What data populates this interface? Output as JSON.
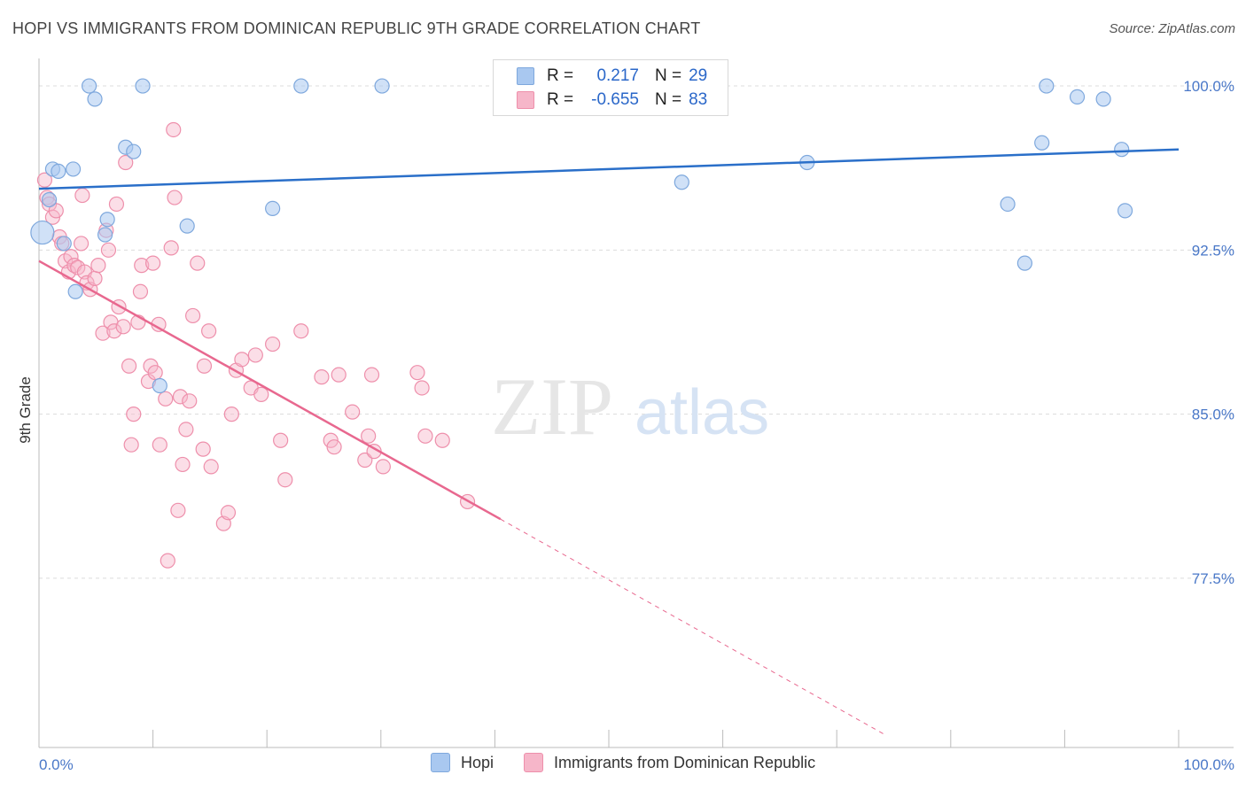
{
  "title": "HOPI VS IMMIGRANTS FROM DOMINICAN REPUBLIC 9TH GRADE CORRELATION CHART",
  "source": "Source: ZipAtlas.com",
  "watermark": {
    "zip": "ZIP",
    "atlas": "atlas"
  },
  "legend": {
    "hopi": {
      "r_label": "R =",
      "r_value": "0.217",
      "n_label": "N =",
      "n_value": "29"
    },
    "dominican": {
      "r_label": "R =",
      "r_value": "-0.655",
      "n_label": "N =",
      "n_value": "83"
    }
  },
  "bottom_legend": {
    "hopi": "Hopi",
    "dominican": "Immigrants from Dominican Republic"
  },
  "colors": {
    "hopi_fill": "#a9c8f0",
    "hopi_stroke": "#7ea8dd",
    "hopi_line": "#2a6fc9",
    "dom_fill": "#f6b6c9",
    "dom_stroke": "#ee8fab",
    "dom_line": "#e8688f",
    "grid": "#dcdcdc",
    "tick_text": "#4a78c8"
  },
  "chart_data": {
    "type": "scatter",
    "title": "HOPI VS IMMIGRANTS FROM DOMINICAN REPUBLIC 9TH GRADE CORRELATION CHART",
    "xlabel": "",
    "ylabel": "9th Grade",
    "xlim": [
      0,
      100
    ],
    "ylim": [
      70.25,
      101.5
    ],
    "x_tick_labels": [
      "0.0%",
      "100.0%"
    ],
    "y_ticks": [
      77.5,
      85.0,
      92.5,
      100.0
    ],
    "y_tick_labels": [
      "77.5%",
      "85.0%",
      "92.5%",
      "100.0%"
    ],
    "series": [
      {
        "name": "Hopi",
        "R": 0.217,
        "N": 29,
        "trend": {
          "x": [
            0,
            100
          ],
          "y": [
            95.3,
            97.1
          ]
        },
        "points": [
          {
            "x": 0.3,
            "y": 93.3,
            "big": true
          },
          {
            "x": 1.2,
            "y": 96.2
          },
          {
            "x": 1.7,
            "y": 96.1
          },
          {
            "x": 3.0,
            "y": 96.2
          },
          {
            "x": 0.9,
            "y": 94.8
          },
          {
            "x": 2.2,
            "y": 92.8
          },
          {
            "x": 3.2,
            "y": 90.6
          },
          {
            "x": 4.4,
            "y": 100.0
          },
          {
            "x": 4.9,
            "y": 99.4
          },
          {
            "x": 9.1,
            "y": 100.0
          },
          {
            "x": 7.6,
            "y": 97.2
          },
          {
            "x": 8.3,
            "y": 97.0
          },
          {
            "x": 6.0,
            "y": 93.9
          },
          {
            "x": 5.8,
            "y": 93.2
          },
          {
            "x": 13.0,
            "y": 93.6
          },
          {
            "x": 10.6,
            "y": 86.3
          },
          {
            "x": 20.5,
            "y": 94.4
          },
          {
            "x": 23.0,
            "y": 100.0
          },
          {
            "x": 30.1,
            "y": 100.0
          },
          {
            "x": 56.4,
            "y": 95.6
          },
          {
            "x": 67.4,
            "y": 96.5
          },
          {
            "x": 85.0,
            "y": 94.6
          },
          {
            "x": 86.5,
            "y": 91.9
          },
          {
            "x": 88.4,
            "y": 100.0
          },
          {
            "x": 91.1,
            "y": 99.5
          },
          {
            "x": 88.0,
            "y": 97.4
          },
          {
            "x": 93.4,
            "y": 99.4
          },
          {
            "x": 95.0,
            "y": 97.1
          },
          {
            "x": 95.3,
            "y": 94.3
          }
        ]
      },
      {
        "name": "Immigrants from Dominican Republic",
        "R": -0.655,
        "N": 83,
        "trend": {
          "x": [
            0,
            40.5
          ],
          "y": [
            92.0,
            80.2
          ]
        },
        "trend_extension": {
          "x": [
            40.5,
            74.4
          ],
          "y": [
            80.2,
            70.3
          ]
        },
        "points": [
          {
            "x": 0.5,
            "y": 95.7
          },
          {
            "x": 0.7,
            "y": 94.9
          },
          {
            "x": 0.9,
            "y": 94.6
          },
          {
            "x": 1.2,
            "y": 94.0
          },
          {
            "x": 1.5,
            "y": 94.3
          },
          {
            "x": 1.8,
            "y": 93.1
          },
          {
            "x": 2.0,
            "y": 92.8
          },
          {
            "x": 2.3,
            "y": 92.0
          },
          {
            "x": 2.6,
            "y": 91.5
          },
          {
            "x": 2.8,
            "y": 92.2
          },
          {
            "x": 3.1,
            "y": 91.8
          },
          {
            "x": 3.4,
            "y": 91.7
          },
          {
            "x": 3.7,
            "y": 92.8
          },
          {
            "x": 4.0,
            "y": 91.5
          },
          {
            "x": 4.2,
            "y": 91.0
          },
          {
            "x": 4.5,
            "y": 90.7
          },
          {
            "x": 4.9,
            "y": 91.2
          },
          {
            "x": 5.2,
            "y": 91.8
          },
          {
            "x": 5.6,
            "y": 88.7
          },
          {
            "x": 5.9,
            "y": 93.4
          },
          {
            "x": 6.1,
            "y": 92.5
          },
          {
            "x": 6.3,
            "y": 89.2
          },
          {
            "x": 6.6,
            "y": 88.8
          },
          {
            "x": 7.0,
            "y": 89.9
          },
          {
            "x": 7.6,
            "y": 96.5
          },
          {
            "x": 7.4,
            "y": 89.0
          },
          {
            "x": 7.9,
            "y": 87.2
          },
          {
            "x": 8.3,
            "y": 85.0
          },
          {
            "x": 8.1,
            "y": 83.6
          },
          {
            "x": 8.7,
            "y": 89.2
          },
          {
            "x": 8.9,
            "y": 90.6
          },
          {
            "x": 9.0,
            "y": 91.8
          },
          {
            "x": 9.6,
            "y": 86.5
          },
          {
            "x": 9.8,
            "y": 87.2
          },
          {
            "x": 10.0,
            "y": 91.9
          },
          {
            "x": 10.2,
            "y": 86.9
          },
          {
            "x": 10.5,
            "y": 89.1
          },
          {
            "x": 10.6,
            "y": 83.6
          },
          {
            "x": 11.1,
            "y": 85.7
          },
          {
            "x": 11.3,
            "y": 78.3
          },
          {
            "x": 11.8,
            "y": 98.0
          },
          {
            "x": 11.6,
            "y": 92.6
          },
          {
            "x": 12.2,
            "y": 80.6
          },
          {
            "x": 12.4,
            "y": 85.8
          },
          {
            "x": 12.6,
            "y": 82.7
          },
          {
            "x": 12.9,
            "y": 84.3
          },
          {
            "x": 13.2,
            "y": 85.6
          },
          {
            "x": 13.5,
            "y": 89.5
          },
          {
            "x": 13.9,
            "y": 91.9
          },
          {
            "x": 14.4,
            "y": 83.4
          },
          {
            "x": 14.5,
            "y": 87.2
          },
          {
            "x": 14.9,
            "y": 88.8
          },
          {
            "x": 15.1,
            "y": 82.6
          },
          {
            "x": 16.2,
            "y": 80.0
          },
          {
            "x": 16.6,
            "y": 80.5
          },
          {
            "x": 16.9,
            "y": 85.0
          },
          {
            "x": 17.3,
            "y": 87.0
          },
          {
            "x": 17.8,
            "y": 87.5
          },
          {
            "x": 18.6,
            "y": 86.2
          },
          {
            "x": 19.0,
            "y": 87.7
          },
          {
            "x": 19.5,
            "y": 85.9
          },
          {
            "x": 20.5,
            "y": 88.2
          },
          {
            "x": 21.2,
            "y": 83.8
          },
          {
            "x": 21.6,
            "y": 82.0
          },
          {
            "x": 23.0,
            "y": 88.8
          },
          {
            "x": 24.8,
            "y": 86.7
          },
          {
            "x": 25.6,
            "y": 83.8
          },
          {
            "x": 25.9,
            "y": 83.5
          },
          {
            "x": 26.3,
            "y": 86.8
          },
          {
            "x": 27.5,
            "y": 85.1
          },
          {
            "x": 28.6,
            "y": 82.9
          },
          {
            "x": 28.9,
            "y": 84.0
          },
          {
            "x": 29.2,
            "y": 86.8
          },
          {
            "x": 29.4,
            "y": 83.3
          },
          {
            "x": 30.2,
            "y": 82.6
          },
          {
            "x": 33.2,
            "y": 86.9
          },
          {
            "x": 33.6,
            "y": 86.2
          },
          {
            "x": 33.9,
            "y": 84.0
          },
          {
            "x": 35.4,
            "y": 83.8
          },
          {
            "x": 37.6,
            "y": 81.0
          },
          {
            "x": 3.8,
            "y": 95.0
          },
          {
            "x": 6.8,
            "y": 94.6
          },
          {
            "x": 11.9,
            "y": 94.9
          }
        ]
      }
    ]
  }
}
